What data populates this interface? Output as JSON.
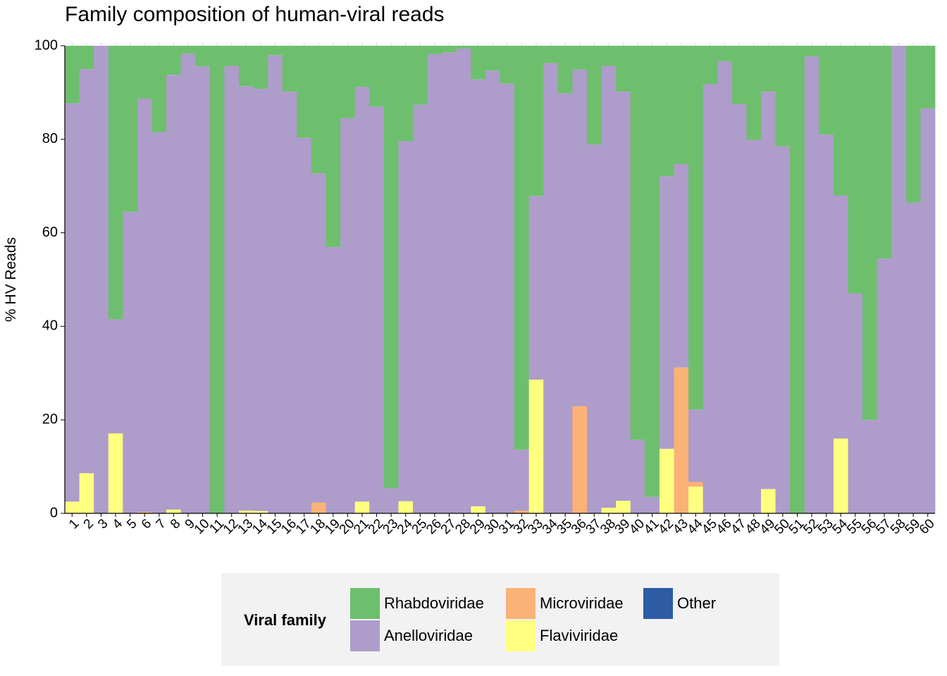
{
  "chart_data": {
    "type": "bar",
    "stacked": true,
    "title": "Family composition of human-viral reads",
    "xlabel": "",
    "ylabel": "% HV Reads",
    "ylim": [
      0,
      100
    ],
    "yticks": [
      0,
      20,
      40,
      60,
      80,
      100
    ],
    "grid": false,
    "legend": {
      "title": "Viral family",
      "position": "bottom"
    },
    "categories": [
      "1",
      "2",
      "3",
      "4",
      "5",
      "6",
      "7",
      "8",
      "9",
      "10",
      "11",
      "12",
      "13",
      "14",
      "15",
      "16",
      "17",
      "18",
      "19",
      "20",
      "21",
      "22",
      "23",
      "24",
      "25",
      "26",
      "27",
      "28",
      "29",
      "30",
      "31",
      "32",
      "33",
      "34",
      "35",
      "36",
      "37",
      "38",
      "39",
      "40",
      "41",
      "42",
      "43",
      "44",
      "45",
      "46",
      "47",
      "48",
      "49",
      "50",
      "51",
      "52",
      "53",
      "54",
      "55",
      "56",
      "57",
      "58",
      "59",
      "60"
    ],
    "series": [
      {
        "name": "Rhabdoviridae",
        "color": "#6dbf6d",
        "values": [
          12.3,
          5.0,
          0,
          58.5,
          35.5,
          11.3,
          18.5,
          6.2,
          1.7,
          4.4,
          100,
          4.3,
          8.6,
          9.2,
          2.0,
          9.8,
          19.7,
          27.3,
          43.0,
          15.5,
          8.8,
          13.0,
          94.6,
          20.4,
          12.6,
          1.8,
          1.4,
          0.6,
          7.2,
          5.3,
          8.1,
          86.4,
          32.1,
          3.7,
          10.2,
          5.1,
          21.1,
          4.3,
          9.8,
          84.3,
          96.5,
          27.9,
          25.3,
          77.8,
          8.2,
          3.3,
          12.5,
          20.1,
          9.8,
          21.5,
          100,
          2.3,
          19.0,
          32.0,
          53.0,
          80.0,
          45.5,
          0,
          33.5,
          13.4
        ]
      },
      {
        "name": "Anelloviridae",
        "color": "#ae9cca",
        "values": [
          85.2,
          86.4,
          100,
          24.4,
          64.5,
          88.4,
          81.5,
          93.0,
          98.3,
          95.6,
          0,
          95.7,
          90.8,
          90.3,
          98.0,
          90.2,
          80.3,
          70.4,
          57.0,
          84.5,
          88.7,
          87.0,
          5.4,
          77.0,
          87.4,
          98.2,
          98.6,
          99.4,
          91.3,
          94.7,
          91.9,
          13.0,
          39.3,
          96.3,
          89.8,
          72.0,
          78.9,
          94.5,
          87.5,
          15.7,
          3.5,
          58.3,
          43.5,
          15.5,
          91.8,
          96.7,
          87.5,
          79.9,
          85.0,
          78.5,
          0,
          97.7,
          81.0,
          52.0,
          47.0,
          20.0,
          54.5,
          100,
          66.5,
          86.6
        ]
      },
      {
        "name": "Microviridae",
        "color": "#fbb276",
        "values": [
          0,
          0,
          0,
          0,
          0,
          0.3,
          0,
          0,
          0,
          0,
          0,
          0,
          0,
          0,
          0,
          0,
          0,
          2.3,
          0,
          0,
          0,
          0,
          0,
          0,
          0,
          0,
          0,
          0,
          0,
          0,
          0,
          0.6,
          0,
          0,
          0,
          22.9,
          0,
          0,
          0,
          0,
          0,
          0,
          31.2,
          1.0,
          0,
          0,
          0,
          0,
          0,
          0,
          0,
          0,
          0,
          0,
          0,
          0,
          0,
          0,
          0,
          0
        ]
      },
      {
        "name": "Flaviviridae",
        "color": "#ffff80",
        "values": [
          2.5,
          8.6,
          0,
          17.1,
          0,
          0,
          0,
          0.8,
          0,
          0,
          0,
          0,
          0.6,
          0.5,
          0,
          0,
          0,
          0,
          0,
          0,
          2.5,
          0,
          0,
          2.6,
          0,
          0,
          0,
          0,
          1.5,
          0,
          0,
          0,
          28.6,
          0,
          0,
          0,
          0,
          1.2,
          2.7,
          0,
          0,
          13.8,
          0,
          5.7,
          0,
          0,
          0,
          0,
          5.2,
          0,
          0,
          0,
          0,
          16.0,
          0,
          0,
          0,
          0,
          0,
          0
        ]
      },
      {
        "name": "Other",
        "color": "#2d5ba4",
        "values": [
          0,
          0,
          0,
          0,
          0,
          0,
          0,
          0,
          0,
          0,
          0,
          0,
          0,
          0,
          0,
          0,
          0,
          0,
          0,
          0,
          0,
          0,
          0,
          0,
          0,
          0,
          0,
          0,
          0,
          0,
          0,
          0,
          0,
          0,
          0,
          0,
          0,
          0,
          0,
          0,
          0,
          0,
          0,
          0,
          0,
          0,
          0,
          0,
          0,
          0,
          0,
          0,
          0,
          0,
          0,
          0,
          0,
          0,
          0,
          0
        ]
      }
    ],
    "stack_order_bottom_to_top": [
      "Flaviviridae",
      "Microviridae",
      "Other",
      "Anelloviridae",
      "Rhabdoviridae"
    ]
  }
}
